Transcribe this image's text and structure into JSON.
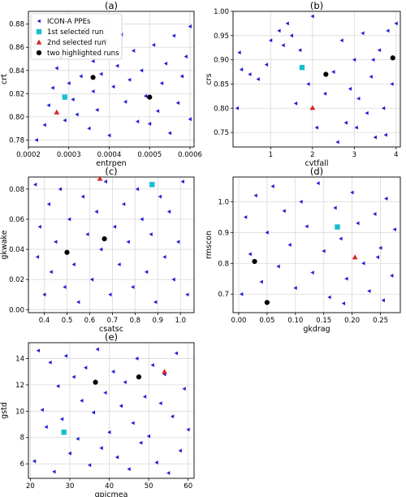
{
  "figure": {
    "legend_location": "upper-left of panel (a)"
  },
  "legend": [
    {
      "label": "ICON-A PPEs",
      "marker": "blue-left-triangle",
      "color": "#1f1fd1"
    },
    {
      "label": "1st selected run",
      "marker": "cyan-square",
      "color": "#17becf"
    },
    {
      "label": "2nd selected run",
      "marker": "red-triangle",
      "color": "#d62728"
    },
    {
      "label": "two highlighted runs",
      "marker": "black-circle",
      "color": "#000000"
    }
  ],
  "colors": {
    "ppe": "#1f1fd1",
    "first": "#17becf",
    "second": "#d62728",
    "highlight": "#000000",
    "grid": "#d9d9d9"
  },
  "chart_data": [
    {
      "type": "scatter",
      "title": "(a)",
      "xlabel": "entrpen",
      "ylabel": "crt",
      "xlim": [
        0.0002,
        0.00061
      ],
      "ylim": [
        0.774,
        0.891
      ],
      "xticks": [
        0.0002,
        0.0003,
        0.0004,
        0.0005,
        0.0006
      ],
      "xticklabels": [
        "0.0002",
        "0.0003",
        "0.0004",
        "0.0005",
        "0.0006"
      ],
      "yticks": [
        0.78,
        0.8,
        0.82,
        0.84,
        0.86,
        0.88
      ],
      "yticklabels": [
        "0.78",
        "0.80",
        "0.82",
        "0.84",
        "0.86",
        "0.88"
      ],
      "grid": true,
      "ppe_points": [
        [
          0.00022,
          0.78
        ],
        [
          0.00024,
          0.793
        ],
        [
          0.00025,
          0.81
        ],
        [
          0.00026,
          0.825
        ],
        [
          0.00027,
          0.842
        ],
        [
          0.00028,
          0.851
        ],
        [
          0.00029,
          0.797
        ],
        [
          0.0003,
          0.829
        ],
        [
          0.00031,
          0.815
        ],
        [
          0.00032,
          0.802
        ],
        [
          0.00033,
          0.835
        ],
        [
          0.00034,
          0.876
        ],
        [
          0.00035,
          0.79
        ],
        [
          0.00036,
          0.822
        ],
        [
          0.00036,
          0.848
        ],
        [
          0.00037,
          0.806
        ],
        [
          0.00038,
          0.837
        ],
        [
          0.00039,
          0.866
        ],
        [
          0.0004,
          0.784
        ],
        [
          0.00041,
          0.826
        ],
        [
          0.00042,
          0.844
        ],
        [
          0.00043,
          0.871
        ],
        [
          0.00044,
          0.813
        ],
        [
          0.00045,
          0.832
        ],
        [
          0.00046,
          0.857
        ],
        [
          0.00047,
          0.796
        ],
        [
          0.00048,
          0.84
        ],
        [
          0.00049,
          0.818
        ],
        [
          0.0005,
          0.794
        ],
        [
          0.00051,
          0.862
        ],
        [
          0.00052,
          0.805
        ],
        [
          0.00053,
          0.829
        ],
        [
          0.00054,
          0.846
        ],
        [
          0.00055,
          0.786
        ],
        [
          0.00056,
          0.87
        ],
        [
          0.00057,
          0.812
        ],
        [
          0.00058,
          0.835
        ],
        [
          0.00059,
          0.852
        ],
        [
          0.0006,
          0.878
        ],
        [
          0.0006,
          0.798
        ]
      ],
      "first_selected": [
        0.00029,
        0.817
      ],
      "second_selected": [
        0.00027,
        0.804
      ],
      "highlighted": [
        [
          0.00036,
          0.834
        ],
        [
          0.0005,
          0.817
        ]
      ]
    },
    {
      "type": "scatter",
      "title": "(b)",
      "xlabel": "cvtfall",
      "ylabel": "crs",
      "xlim": [
        0.1,
        4.1
      ],
      "ylim": [
        0.72,
        1.0
      ],
      "xticks": [
        1,
        2,
        3,
        4
      ],
      "xticklabels": [
        "1",
        "2",
        "3",
        "4"
      ],
      "yticks": [
        0.75,
        0.8,
        0.85,
        0.9,
        0.95,
        1.0
      ],
      "yticklabels": [
        "0.75",
        "0.80",
        "0.85",
        "0.90",
        "0.95",
        "1.00"
      ],
      "grid": true,
      "ppe_points": [
        [
          0.2,
          0.8
        ],
        [
          0.25,
          0.915
        ],
        [
          0.3,
          0.88
        ],
        [
          0.5,
          0.87
        ],
        [
          0.7,
          0.86
        ],
        [
          0.9,
          0.89
        ],
        [
          1.0,
          0.94
        ],
        [
          1.2,
          0.96
        ],
        [
          1.3,
          0.93
        ],
        [
          1.4,
          0.975
        ],
        [
          1.5,
          0.95
        ],
        [
          1.6,
          0.81
        ],
        [
          1.7,
          0.92
        ],
        [
          1.9,
          0.85
        ],
        [
          2.0,
          0.99
        ],
        [
          2.1,
          0.76
        ],
        [
          2.3,
          0.83
        ],
        [
          2.5,
          0.875
        ],
        [
          2.6,
          0.73
        ],
        [
          2.7,
          0.94
        ],
        [
          2.8,
          0.77
        ],
        [
          2.9,
          0.84
        ],
        [
          3.0,
          0.9
        ],
        [
          3.1,
          0.82
        ],
        [
          3.2,
          0.955
        ],
        [
          3.3,
          0.79
        ],
        [
          3.4,
          0.865
        ],
        [
          3.5,
          0.74
        ],
        [
          3.6,
          0.92
        ],
        [
          3.7,
          0.8
        ],
        [
          3.8,
          0.96
        ],
        [
          3.9,
          0.85
        ],
        [
          4.0,
          0.975
        ],
        [
          3.75,
          0.745
        ],
        [
          3.45,
          0.9
        ],
        [
          3.05,
          0.76
        ]
      ],
      "first_selected": [
        1.75,
        0.884
      ],
      "second_selected": [
        2.0,
        0.801
      ],
      "highlighted": [
        [
          2.32,
          0.87
        ],
        [
          3.92,
          0.904
        ]
      ]
    },
    {
      "type": "scatter",
      "title": "(c)",
      "xlabel": "csatsc",
      "ylabel": "gkwake",
      "xlim": [
        0.33,
        1.06
      ],
      "ylim": [
        -0.002,
        0.088
      ],
      "xticks": [
        0.4,
        0.5,
        0.6,
        0.7,
        0.8,
        0.9,
        1.0
      ],
      "xticklabels": [
        "0.4",
        "0.5",
        "0.6",
        "0.7",
        "0.8",
        "0.9",
        "1.0"
      ],
      "yticks": [
        0.0,
        0.02,
        0.04,
        0.06,
        0.08
      ],
      "yticklabels": [
        "0.00",
        "0.02",
        "0.04",
        "0.06",
        "0.08"
      ],
      "grid": true,
      "ppe_points": [
        [
          0.36,
          0.083
        ],
        [
          0.37,
          0.035
        ],
        [
          0.38,
          0.055
        ],
        [
          0.4,
          0.01
        ],
        [
          0.42,
          0.07
        ],
        [
          0.43,
          0.025
        ],
        [
          0.45,
          0.045
        ],
        [
          0.47,
          0.08
        ],
        [
          0.49,
          0.015
        ],
        [
          0.51,
          0.06
        ],
        [
          0.53,
          0.03
        ],
        [
          0.55,
          0.005
        ],
        [
          0.57,
          0.075
        ],
        [
          0.59,
          0.05
        ],
        [
          0.61,
          0.02
        ],
        [
          0.63,
          0.065
        ],
        [
          0.65,
          0.04
        ],
        [
          0.67,
          0.085
        ],
        [
          0.69,
          0.01
        ],
        [
          0.71,
          0.055
        ],
        [
          0.73,
          0.03
        ],
        [
          0.75,
          0.07
        ],
        [
          0.77,
          0.045
        ],
        [
          0.79,
          0.015
        ],
        [
          0.81,
          0.08
        ],
        [
          0.83,
          0.06
        ],
        [
          0.85,
          0.025
        ],
        [
          0.87,
          0.05
        ],
        [
          0.89,
          0.005
        ],
        [
          0.91,
          0.075
        ],
        [
          0.93,
          0.035
        ],
        [
          0.95,
          0.065
        ],
        [
          0.97,
          0.02
        ],
        [
          0.99,
          0.045
        ],
        [
          1.01,
          0.085
        ],
        [
          1.03,
          0.01
        ]
      ],
      "first_selected": [
        0.875,
        0.083
      ],
      "second_selected": [
        0.645,
        0.087
      ],
      "highlighted": [
        [
          0.5,
          0.038
        ],
        [
          0.665,
          0.047
        ]
      ]
    },
    {
      "type": "scatter",
      "title": "(d)",
      "xlabel": "gkdrag",
      "ylabel": "rmscon",
      "xlim": [
        -0.01,
        0.285
      ],
      "ylim": [
        0.64,
        1.08
      ],
      "xticks": [
        0.0,
        0.05,
        0.1,
        0.15,
        0.2,
        0.25
      ],
      "xticklabels": [
        "0.00",
        "0.05",
        "0.10",
        "0.15",
        "0.20",
        "0.25"
      ],
      "yticks": [
        0.7,
        0.8,
        0.9,
        1.0
      ],
      "yticklabels": [
        "0.7",
        "0.8",
        "0.9",
        "1.0"
      ],
      "grid": true,
      "ppe_points": [
        [
          0.005,
          0.7
        ],
        [
          0.012,
          0.95
        ],
        [
          0.02,
          0.83
        ],
        [
          0.03,
          1.02
        ],
        [
          0.04,
          0.74
        ],
        [
          0.05,
          0.9
        ],
        [
          0.06,
          1.05
        ],
        [
          0.07,
          0.79
        ],
        [
          0.08,
          0.97
        ],
        [
          0.09,
          0.86
        ],
        [
          0.1,
          0.72
        ],
        [
          0.11,
          1.0
        ],
        [
          0.12,
          0.92
        ],
        [
          0.13,
          0.77
        ],
        [
          0.14,
          1.06
        ],
        [
          0.15,
          0.84
        ],
        [
          0.16,
          0.69
        ],
        [
          0.17,
          0.98
        ],
        [
          0.18,
          0.88
        ],
        [
          0.19,
          0.75
        ],
        [
          0.2,
          1.03
        ],
        [
          0.21,
          0.93
        ],
        [
          0.22,
          0.8
        ],
        [
          0.23,
          0.71
        ],
        [
          0.24,
          0.96
        ],
        [
          0.25,
          0.85
        ],
        [
          0.26,
          1.01
        ],
        [
          0.27,
          0.76
        ],
        [
          0.275,
          0.91
        ],
        [
          0.255,
          0.68
        ],
        [
          0.245,
          0.82
        ],
        [
          0.185,
          0.67
        ]
      ],
      "first_selected": [
        0.174,
        0.918
      ],
      "second_selected": [
        0.205,
        0.82
      ],
      "highlighted": [
        [
          0.028,
          0.806
        ],
        [
          0.05,
          0.673
        ]
      ]
    },
    {
      "type": "scatter",
      "title": "(e)",
      "xlabel": "gpicmea",
      "ylabel": "gstd",
      "xlim": [
        19.5,
        61.5
      ],
      "ylim": [
        4.9,
        15.2
      ],
      "xticks": [
        20,
        30,
        40,
        50,
        60
      ],
      "xticklabels": [
        "20",
        "30",
        "40",
        "50",
        "60"
      ],
      "yticks": [
        6,
        8,
        10,
        12,
        14
      ],
      "yticklabels": [
        "6",
        "8",
        "10",
        "12",
        "14"
      ],
      "grid": true,
      "ppe_points": [
        [
          21,
          6.2
        ],
        [
          22,
          14.6
        ],
        [
          23,
          10.1
        ],
        [
          24,
          8.8
        ],
        [
          25,
          13.7
        ],
        [
          26,
          5.4
        ],
        [
          27,
          11.9
        ],
        [
          28,
          9.4
        ],
        [
          29,
          14.2
        ],
        [
          30,
          6.8
        ],
        [
          31,
          12.6
        ],
        [
          32,
          7.9
        ],
        [
          33,
          10.8
        ],
        [
          34,
          13.3
        ],
        [
          35,
          5.9
        ],
        [
          36,
          9.9
        ],
        [
          37,
          14.7
        ],
        [
          38,
          7.2
        ],
        [
          39,
          11.4
        ],
        [
          40,
          8.4
        ],
        [
          41,
          13.0
        ],
        [
          42,
          6.5
        ],
        [
          43,
          10.4
        ],
        [
          44,
          12.2
        ],
        [
          45,
          5.6
        ],
        [
          46,
          9.1
        ],
        [
          47,
          14.0
        ],
        [
          48,
          7.6
        ],
        [
          49,
          11.1
        ],
        [
          50,
          8.1
        ],
        [
          51,
          13.5
        ],
        [
          52,
          6.1
        ],
        [
          53,
          10.6
        ],
        [
          54,
          12.8
        ],
        [
          55,
          5.3
        ],
        [
          56,
          9.6
        ],
        [
          57,
          14.4
        ],
        [
          58,
          7.0
        ],
        [
          59,
          11.7
        ],
        [
          60,
          8.6
        ]
      ],
      "first_selected": [
        28.5,
        8.4
      ],
      "second_selected": [
        54.0,
        13.0
      ],
      "highlighted": [
        [
          36.5,
          12.2
        ],
        [
          47.5,
          12.6
        ]
      ]
    }
  ]
}
